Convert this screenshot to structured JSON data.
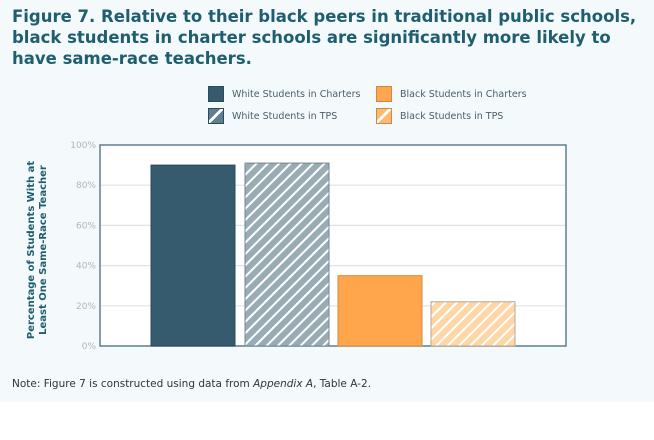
{
  "title": "Figure 7. Relative to their black peers in traditional public schools, black students in charter schools are significantly more likely to have same-race teachers.",
  "note": {
    "prefix": "Note: Figure 7 is constructed using data from ",
    "italic": "Appendix A",
    "suffix": ", Table A-2."
  },
  "colors": {
    "white": "#365b6e",
    "white_tps": "#99acb5",
    "black": "#ffa64d",
    "black_tps": "#ffd6a6"
  },
  "chart_data": {
    "type": "bar",
    "title": "Figure 7. Relative to their black peers in traditional public schools, black students in charter schools are significantly more likely to have same-race teachers.",
    "xlabel": "",
    "ylabel": "Percentage of Students With at Least One Same-Race Teacher",
    "ylim": [
      0,
      100
    ],
    "yticks": [
      "0%",
      "20%",
      "40%",
      "60%",
      "80%",
      "100%"
    ],
    "grid": true,
    "legend_placement": "top",
    "series": [
      {
        "name": "White Students in Charters",
        "value": 90,
        "pattern": "solid"
      },
      {
        "name": "White Students in TPS",
        "value": 91,
        "pattern": "hatched"
      },
      {
        "name": "Black Students in Charters",
        "value": 35,
        "pattern": "solid"
      },
      {
        "name": "Black Students in TPS",
        "value": 22,
        "pattern": "hatched"
      }
    ]
  }
}
